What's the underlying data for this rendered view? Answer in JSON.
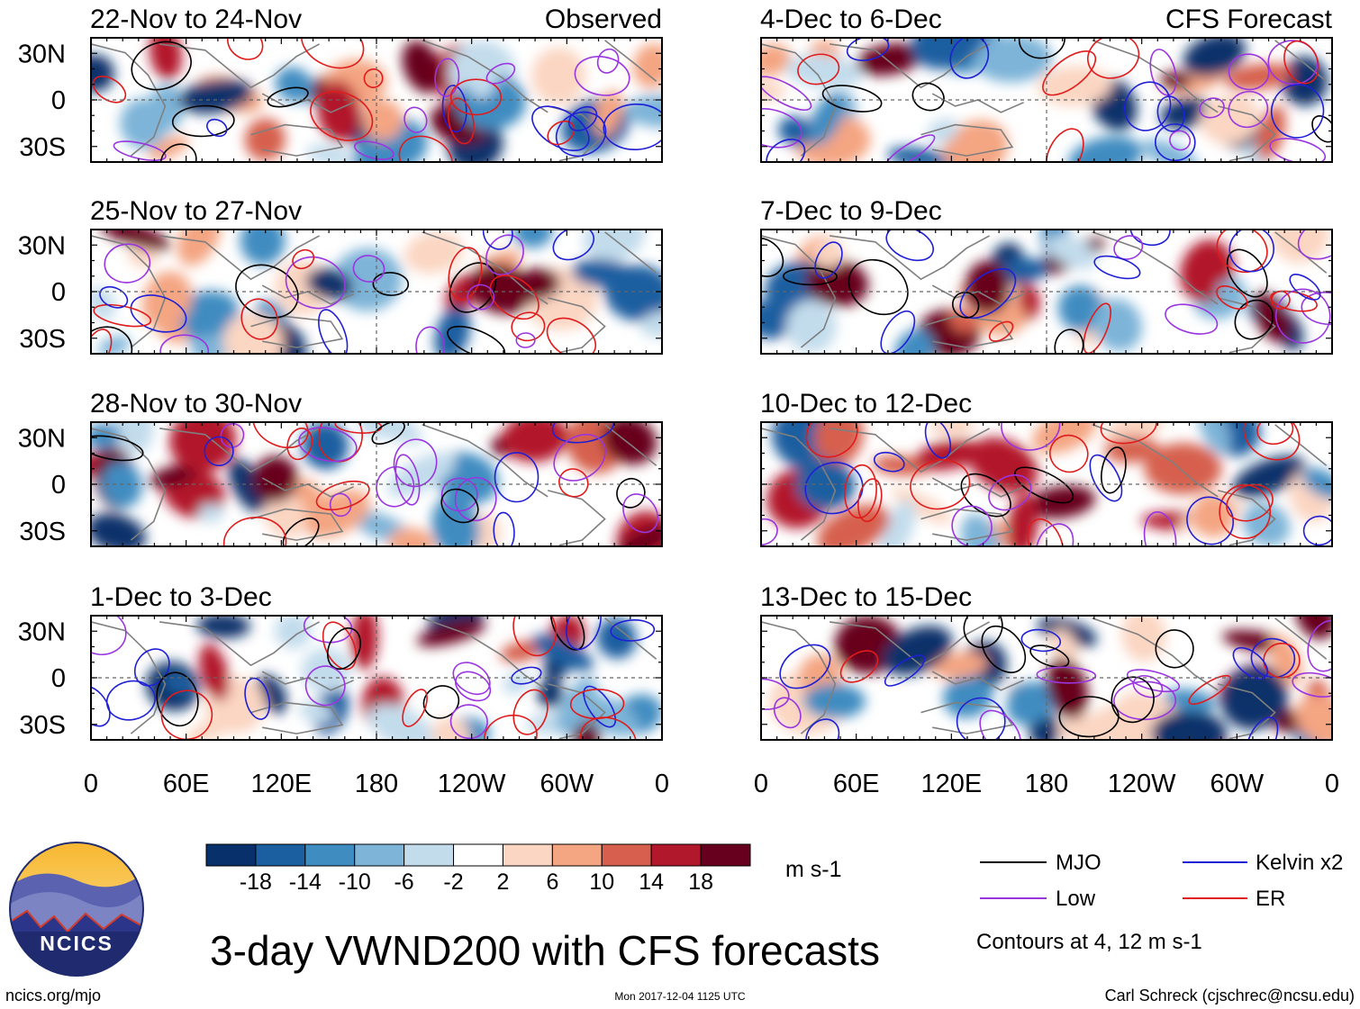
{
  "title": "3-day VWND200 with CFS forecasts",
  "units": "m s-1",
  "logo_text": "NCICS",
  "url": "ncics.org/mjo",
  "timestamp": "Mon 2017-12-04 1125 UTC",
  "author": "Carl Schreck (cjschrec@ncsu.edu)",
  "contour_note": "Contours at 4, 12 m s-1",
  "colors": {
    "map_land": "#7f7f7f",
    "frame": "#000000",
    "text": "#000000",
    "logo_ring": "#1f2b6e"
  },
  "chart_data": {
    "type": "heatmap",
    "variable": "VWND200",
    "column_labels": [
      "Observed",
      "CFS Forecast"
    ],
    "panels": [
      {
        "column": "Observed",
        "period": "22-Nov to 24-Nov"
      },
      {
        "column": "Observed",
        "period": "25-Nov to 27-Nov"
      },
      {
        "column": "Observed",
        "period": "28-Nov to 30-Nov"
      },
      {
        "column": "Observed",
        "period": "1-Dec to 3-Dec"
      },
      {
        "column": "CFS Forecast",
        "period": "4-Dec to 6-Dec"
      },
      {
        "column": "CFS Forecast",
        "period": "7-Dec to 9-Dec"
      },
      {
        "column": "CFS Forecast",
        "period": "10-Dec to 12-Dec"
      },
      {
        "column": "CFS Forecast",
        "period": "13-Dec to 15-Dec"
      }
    ],
    "xticks": [
      "0",
      "60E",
      "120E",
      "180",
      "120W",
      "60W",
      "0"
    ],
    "yticks": [
      "30N",
      "0",
      "30S"
    ],
    "xlim": [
      0,
      360
    ],
    "ylim": [
      -40,
      40
    ],
    "colorbar": {
      "levels": [
        "-18",
        "-14",
        "-10",
        "-6",
        "-2",
        "2",
        "6",
        "10",
        "14",
        "18"
      ],
      "colors": [
        "#08306b",
        "#1c5fa0",
        "#3f8cc1",
        "#7db4d8",
        "#c2dcec",
        "#ffffff",
        "#fbd6c2",
        "#f4a582",
        "#d6604d",
        "#b2182b",
        "#67001f"
      ],
      "units": "m s-1"
    },
    "legend": [
      {
        "label": "MJO",
        "color": "#000000"
      },
      {
        "label": "Kelvin x2",
        "color": "#1f1fd6"
      },
      {
        "label": "Low",
        "color": "#9a35e0"
      },
      {
        "label": "ER",
        "color": "#e01b1b"
      }
    ]
  }
}
